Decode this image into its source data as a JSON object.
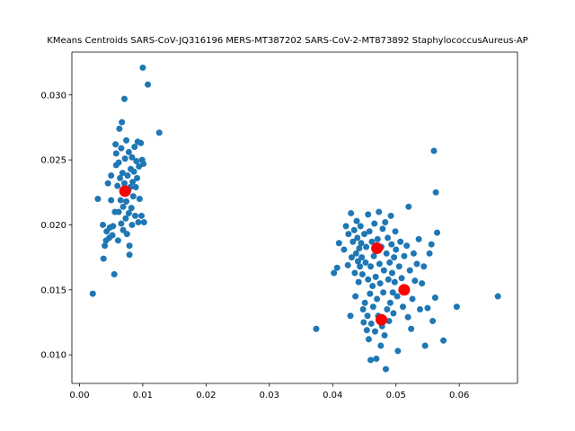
{
  "chart_data": {
    "type": "scatter",
    "title": "KMeans Centroids SARS-CoV-JQ316196 MERS-MT387202 SARS-CoV-2-MT873892 StaphylococcusAureus-AP",
    "xlabel": "",
    "ylabel": "",
    "xlim": [
      -0.0012,
      0.0692
    ],
    "ylim": [
      0.0078,
      0.0333
    ],
    "x_ticks": [
      0.0,
      0.01,
      0.02,
      0.03,
      0.04,
      0.05,
      0.06
    ],
    "x_tick_labels": [
      "0.00",
      "0.01",
      "0.02",
      "0.03",
      "0.04",
      "0.05",
      "0.06"
    ],
    "y_ticks": [
      0.01,
      0.015,
      0.02,
      0.025,
      0.03
    ],
    "y_tick_labels": [
      "0.010",
      "0.015",
      "0.020",
      "0.025",
      "0.030"
    ],
    "grid": false,
    "legend": "none",
    "colors": {
      "points": "#1f77b4",
      "centroids": "#ff0000"
    },
    "series": [
      {
        "role": "points",
        "points": [
          [
            0.0021,
            0.0147
          ],
          [
            0.0029,
            0.022
          ],
          [
            0.0037,
            0.02
          ],
          [
            0.0038,
            0.0174
          ],
          [
            0.004,
            0.0184
          ],
          [
            0.0042,
            0.0188
          ],
          [
            0.0043,
            0.0195
          ],
          [
            0.0045,
            0.0232
          ],
          [
            0.0047,
            0.019
          ],
          [
            0.0048,
            0.0198
          ],
          [
            0.005,
            0.0219
          ],
          [
            0.005,
            0.0238
          ],
          [
            0.0052,
            0.0192
          ],
          [
            0.0053,
            0.0199
          ],
          [
            0.0055,
            0.0162
          ],
          [
            0.0056,
            0.021
          ],
          [
            0.0057,
            0.0262
          ],
          [
            0.0058,
            0.0246
          ],
          [
            0.0058,
            0.0255
          ],
          [
            0.006,
            0.023
          ],
          [
            0.0061,
            0.0188
          ],
          [
            0.0062,
            0.021
          ],
          [
            0.0062,
            0.0248
          ],
          [
            0.0063,
            0.0274
          ],
          [
            0.0064,
            0.0236
          ],
          [
            0.0065,
            0.0219
          ],
          [
            0.0066,
            0.0201
          ],
          [
            0.0066,
            0.0259
          ],
          [
            0.0067,
            0.0279
          ],
          [
            0.0068,
            0.024
          ],
          [
            0.0069,
            0.0196
          ],
          [
            0.0069,
            0.0214
          ],
          [
            0.007,
            0.0227
          ],
          [
            0.0071,
            0.0232
          ],
          [
            0.0071,
            0.0297
          ],
          [
            0.0072,
            0.0251
          ],
          [
            0.0073,
            0.0205
          ],
          [
            0.0074,
            0.0218
          ],
          [
            0.0074,
            0.0265
          ],
          [
            0.0075,
            0.0193
          ],
          [
            0.0076,
            0.0238
          ],
          [
            0.0077,
            0.0226
          ],
          [
            0.0078,
            0.0209
          ],
          [
            0.0078,
            0.0256
          ],
          [
            0.0079,
            0.0184
          ],
          [
            0.0079,
            0.0177
          ],
          [
            0.008,
            0.0229
          ],
          [
            0.0081,
            0.0243
          ],
          [
            0.0082,
            0.0213
          ],
          [
            0.0083,
            0.02
          ],
          [
            0.0083,
            0.0252
          ],
          [
            0.0084,
            0.0233
          ],
          [
            0.0085,
            0.0222
          ],
          [
            0.0086,
            0.0241
          ],
          [
            0.0087,
            0.026
          ],
          [
            0.0088,
            0.0207
          ],
          [
            0.0089,
            0.0229
          ],
          [
            0.009,
            0.0249
          ],
          [
            0.0091,
            0.0236
          ],
          [
            0.0092,
            0.0264
          ],
          [
            0.0093,
            0.0202
          ],
          [
            0.0094,
            0.0245
          ],
          [
            0.0095,
            0.022
          ],
          [
            0.0097,
            0.0263
          ],
          [
            0.0098,
            0.0207
          ],
          [
            0.0099,
            0.025
          ],
          [
            0.01,
            0.0321
          ],
          [
            0.0101,
            0.0247
          ],
          [
            0.0102,
            0.0202
          ],
          [
            0.0108,
            0.0308
          ],
          [
            0.0126,
            0.0271
          ],
          [
            0.0374,
            0.012
          ],
          [
            0.0402,
            0.0163
          ],
          [
            0.0407,
            0.0167
          ],
          [
            0.041,
            0.0186
          ],
          [
            0.0418,
            0.0181
          ],
          [
            0.0421,
            0.0199
          ],
          [
            0.0424,
            0.0169
          ],
          [
            0.0425,
            0.0193
          ],
          [
            0.0428,
            0.013
          ],
          [
            0.0429,
            0.0209
          ],
          [
            0.043,
            0.0175
          ],
          [
            0.0432,
            0.0187
          ],
          [
            0.0434,
            0.0196
          ],
          [
            0.0435,
            0.0163
          ],
          [
            0.0436,
            0.0145
          ],
          [
            0.0437,
            0.0178
          ],
          [
            0.0438,
            0.0203
          ],
          [
            0.0439,
            0.019
          ],
          [
            0.044,
            0.0172
          ],
          [
            0.0441,
            0.0156
          ],
          [
            0.0442,
            0.0182
          ],
          [
            0.0443,
            0.0168
          ],
          [
            0.0444,
            0.0199
          ],
          [
            0.0445,
            0.0186
          ],
          [
            0.0446,
            0.0175
          ],
          [
            0.0447,
            0.0162
          ],
          [
            0.0448,
            0.0135
          ],
          [
            0.0449,
            0.0125
          ],
          [
            0.045,
            0.0193
          ],
          [
            0.0451,
            0.014
          ],
          [
            0.0452,
            0.0171
          ],
          [
            0.0453,
            0.0183
          ],
          [
            0.0454,
            0.0119
          ],
          [
            0.0455,
            0.013
          ],
          [
            0.0456,
            0.0158
          ],
          [
            0.0456,
            0.0208
          ],
          [
            0.0457,
            0.0112
          ],
          [
            0.0458,
            0.0195
          ],
          [
            0.0459,
            0.0147
          ],
          [
            0.046,
            0.0168
          ],
          [
            0.046,
            0.0096
          ],
          [
            0.0461,
            0.0124
          ],
          [
            0.0462,
            0.0187
          ],
          [
            0.0463,
            0.0153
          ],
          [
            0.0464,
            0.0137
          ],
          [
            0.0465,
            0.0176
          ],
          [
            0.0466,
            0.0201
          ],
          [
            0.0467,
            0.0118
          ],
          [
            0.0468,
            0.016
          ],
          [
            0.0469,
            0.0097
          ],
          [
            0.047,
            0.0143
          ],
          [
            0.0471,
            0.0189
          ],
          [
            0.0472,
            0.013
          ],
          [
            0.0473,
            0.021
          ],
          [
            0.0474,
            0.017
          ],
          [
            0.0475,
            0.0155
          ],
          [
            0.0476,
            0.0107
          ],
          [
            0.0477,
            0.0183
          ],
          [
            0.0478,
            0.0122
          ],
          [
            0.0479,
            0.0197
          ],
          [
            0.048,
            0.0148
          ],
          [
            0.0481,
            0.0165
          ],
          [
            0.0482,
            0.0115
          ],
          [
            0.0483,
            0.0202
          ],
          [
            0.0484,
            0.0089
          ],
          [
            0.0485,
            0.0178
          ],
          [
            0.0486,
            0.0135
          ],
          [
            0.0487,
            0.019
          ],
          [
            0.0488,
            0.0158
          ],
          [
            0.0489,
            0.0126
          ],
          [
            0.049,
            0.0171
          ],
          [
            0.0491,
            0.014
          ],
          [
            0.0492,
            0.0207
          ],
          [
            0.0493,
            0.0185
          ],
          [
            0.0494,
            0.0163
          ],
          [
            0.0495,
            0.0148
          ],
          [
            0.0496,
            0.0132
          ],
          [
            0.0497,
            0.0175
          ],
          [
            0.0498,
            0.0156
          ],
          [
            0.0499,
            0.0195
          ],
          [
            0.05,
            0.0181
          ],
          [
            0.0502,
            0.0145
          ],
          [
            0.0503,
            0.0103
          ],
          [
            0.0505,
            0.0168
          ],
          [
            0.0507,
            0.0187
          ],
          [
            0.0509,
            0.0159
          ],
          [
            0.0511,
            0.0137
          ],
          [
            0.0513,
            0.0176
          ],
          [
            0.0515,
            0.015
          ],
          [
            0.0517,
            0.0184
          ],
          [
            0.0519,
            0.0129
          ],
          [
            0.052,
            0.0214
          ],
          [
            0.0522,
            0.0165
          ],
          [
            0.0524,
            0.012
          ],
          [
            0.0526,
            0.0143
          ],
          [
            0.0528,
            0.0178
          ],
          [
            0.053,
            0.0157
          ],
          [
            0.0533,
            0.017
          ],
          [
            0.0536,
            0.0189
          ],
          [
            0.0538,
            0.0135
          ],
          [
            0.0541,
            0.0155
          ],
          [
            0.0544,
            0.0168
          ],
          [
            0.0546,
            0.0107
          ],
          [
            0.055,
            0.0136
          ],
          [
            0.0553,
            0.0178
          ],
          [
            0.0556,
            0.0185
          ],
          [
            0.0558,
            0.0126
          ],
          [
            0.056,
            0.0257
          ],
          [
            0.0562,
            0.0144
          ],
          [
            0.0563,
            0.0225
          ],
          [
            0.0565,
            0.0194
          ],
          [
            0.0575,
            0.0111
          ],
          [
            0.0596,
            0.0137
          ],
          [
            0.0661,
            0.0145
          ]
        ]
      },
      {
        "role": "centroids",
        "points": [
          [
            0.0072,
            0.0226
          ],
          [
            0.047,
            0.0182
          ],
          [
            0.0513,
            0.015
          ],
          [
            0.0477,
            0.0127
          ]
        ]
      }
    ]
  }
}
